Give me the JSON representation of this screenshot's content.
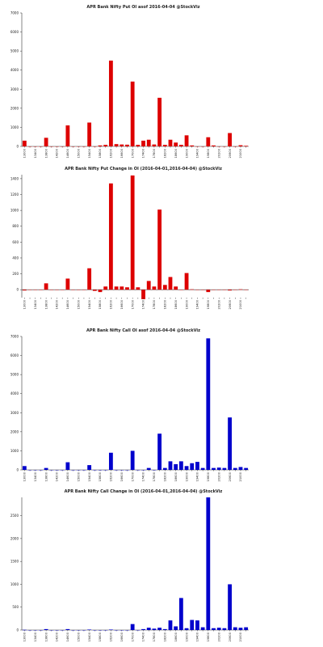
{
  "chart_data": [
    {
      "type": "bar",
      "title": "APR Bank Nifty Put OI asof 2016-04-04 @StockViz",
      "color": "#dd0000",
      "ylim": [
        0,
        7000
      ],
      "yticks": [
        0,
        1000,
        2000,
        3000,
        4000,
        5000,
        6000,
        7000
      ],
      "categories": [
        "13000",
        "13200",
        "13400",
        "13600",
        "13800",
        "14000",
        "14200",
        "14400",
        "14600",
        "14800",
        "15000",
        "15200",
        "15400",
        "15600",
        "15800",
        "16000",
        "16200",
        "16400",
        "16600",
        "16800",
        "17000",
        "17200",
        "17400",
        "17600",
        "17800",
        "18000",
        "18200",
        "18400",
        "18600",
        "18800",
        "19000",
        "19200",
        "19400",
        "19600",
        "19800",
        "20000",
        "20200",
        "20400",
        "20600",
        "20800",
        "21000",
        "21200"
      ],
      "xticklabels": [
        "13000",
        "",
        "13400",
        "",
        "13800",
        "",
        "14200",
        "",
        "14600",
        "",
        "15000",
        "",
        "15400",
        "",
        "15800",
        "",
        "16200",
        "",
        "16600",
        "",
        "17000",
        "",
        "17400",
        "",
        "17800",
        "",
        "18200",
        "",
        "18600",
        "",
        "19000",
        "",
        "19400",
        "",
        "19800",
        "",
        "20200",
        "",
        "20600",
        "",
        "21000",
        ""
      ],
      "values": [
        300,
        0,
        0,
        0,
        450,
        0,
        0,
        0,
        1100,
        0,
        0,
        0,
        1250,
        0,
        50,
        80,
        4500,
        120,
        100,
        90,
        3400,
        80,
        300,
        350,
        100,
        2550,
        80,
        350,
        200,
        80,
        580,
        50,
        0,
        0,
        480,
        50,
        0,
        0,
        700,
        0,
        60,
        30
      ]
    },
    {
      "type": "bar",
      "title": "APR Bank Nifty Put Change in OI (2016-04-01,2016-04-04) @StockViz",
      "color": "#dd0000",
      "ylim": [
        -100,
        1450
      ],
      "yticks": [
        0,
        200,
        400,
        600,
        800,
        1000,
        1200,
        1400
      ],
      "categories": [
        "13000",
        "13200",
        "13400",
        "13600",
        "13800",
        "14000",
        "14200",
        "14400",
        "14600",
        "14800",
        "15000",
        "15200",
        "15400",
        "15600",
        "15800",
        "16000",
        "16200",
        "16400",
        "16600",
        "16800",
        "17000",
        "17200",
        "17400",
        "17600",
        "17800",
        "18000",
        "18200",
        "18400",
        "18600",
        "18800",
        "19000",
        "19200",
        "19400",
        "19600",
        "19800",
        "20000",
        "20200",
        "20400",
        "20600",
        "20800",
        "21000",
        "21200"
      ],
      "xticklabels": [
        "13000",
        "",
        "13400",
        "",
        "13800",
        "",
        "14200",
        "",
        "14600",
        "",
        "15000",
        "",
        "15400",
        "",
        "15800",
        "",
        "16200",
        "",
        "16600",
        "",
        "17000",
        "",
        "17400",
        "",
        "17800",
        "",
        "18200",
        "",
        "18600",
        "",
        "19000",
        "",
        "19400",
        "",
        "19800",
        "",
        "20200",
        "",
        "20600",
        "",
        "21000",
        ""
      ],
      "values": [
        -10,
        0,
        0,
        0,
        80,
        0,
        0,
        0,
        140,
        0,
        0,
        0,
        270,
        -15,
        -30,
        40,
        1340,
        40,
        40,
        30,
        1440,
        30,
        -120,
        110,
        40,
        1010,
        60,
        160,
        40,
        0,
        210,
        5,
        0,
        0,
        -30,
        0,
        0,
        0,
        -10,
        0,
        5,
        0
      ]
    },
    {
      "type": "bar",
      "title": "APR Bank Nifty Call OI asof 2016-04-04 @StockViz",
      "color": "#0000cc",
      "ylim": [
        0,
        7000
      ],
      "yticks": [
        0,
        1000,
        2000,
        3000,
        4000,
        5000,
        6000,
        7000
      ],
      "categories": [
        "13000",
        "13200",
        "13400",
        "13600",
        "13800",
        "14000",
        "14200",
        "14400",
        "14600",
        "14800",
        "15000",
        "15200",
        "15400",
        "15600",
        "15800",
        "16000",
        "16200",
        "16400",
        "16600",
        "16800",
        "17000",
        "17200",
        "17400",
        "17600",
        "17800",
        "18000",
        "18200",
        "18400",
        "18600",
        "18800",
        "19000",
        "19200",
        "19400",
        "19600",
        "19800",
        "20000",
        "20200",
        "20400",
        "20600",
        "20800",
        "21000",
        "21200"
      ],
      "xticklabels": [
        "13000",
        "",
        "13400",
        "",
        "13800",
        "",
        "14200",
        "",
        "14600",
        "",
        "15000",
        "",
        "15400",
        "",
        "15800",
        "",
        "16200",
        "",
        "16600",
        "",
        "17000",
        "",
        "17400",
        "",
        "17800",
        "",
        "18200",
        "",
        "18600",
        "",
        "19000",
        "",
        "19400",
        "",
        "19800",
        "",
        "20200",
        "",
        "20600",
        "",
        "21000",
        ""
      ],
      "values": [
        200,
        0,
        0,
        0,
        100,
        0,
        0,
        0,
        400,
        0,
        0,
        0,
        250,
        0,
        0,
        0,
        900,
        0,
        0,
        0,
        1000,
        0,
        0,
        100,
        0,
        1900,
        100,
        450,
        300,
        450,
        200,
        350,
        420,
        100,
        6900,
        100,
        120,
        100,
        2750,
        100,
        150,
        100
      ]
    },
    {
      "type": "bar",
      "title": "APR Bank Nifty Call Change in OI (2016-04-01,2016-04-04) @StockViz",
      "color": "#0000cc",
      "ylim": [
        0,
        2900
      ],
      "yticks": [
        0,
        500,
        1000,
        1500,
        2000,
        2500
      ],
      "categories": [
        "13000",
        "13200",
        "13400",
        "13600",
        "13800",
        "14000",
        "14200",
        "14400",
        "14600",
        "14800",
        "15000",
        "15200",
        "15400",
        "15600",
        "15800",
        "16000",
        "16200",
        "16400",
        "16600",
        "16800",
        "17000",
        "17200",
        "17400",
        "17600",
        "17800",
        "18000",
        "18200",
        "18400",
        "18600",
        "18800",
        "19000",
        "19200",
        "19400",
        "19600",
        "19800",
        "20000",
        "20200",
        "20400",
        "20600",
        "20800",
        "21000",
        "21200"
      ],
      "xticklabels": [
        "13000",
        "",
        "13400",
        "",
        "13800",
        "",
        "14200",
        "",
        "14600",
        "",
        "15000",
        "",
        "15400",
        "",
        "15800",
        "",
        "16200",
        "",
        "16600",
        "",
        "17000",
        "",
        "17400",
        "",
        "17800",
        "",
        "18200",
        "",
        "18600",
        "",
        "19000",
        "",
        "19400",
        "",
        "19800",
        "",
        "20200",
        "",
        "20600",
        "",
        "21000",
        ""
      ],
      "values": [
        5,
        0,
        0,
        0,
        20,
        0,
        0,
        0,
        20,
        0,
        0,
        0,
        10,
        0,
        0,
        0,
        10,
        0,
        0,
        0,
        130,
        0,
        20,
        50,
        30,
        50,
        20,
        210,
        80,
        700,
        40,
        220,
        210,
        60,
        2900,
        40,
        50,
        40,
        1000,
        60,
        50,
        60
      ]
    }
  ]
}
